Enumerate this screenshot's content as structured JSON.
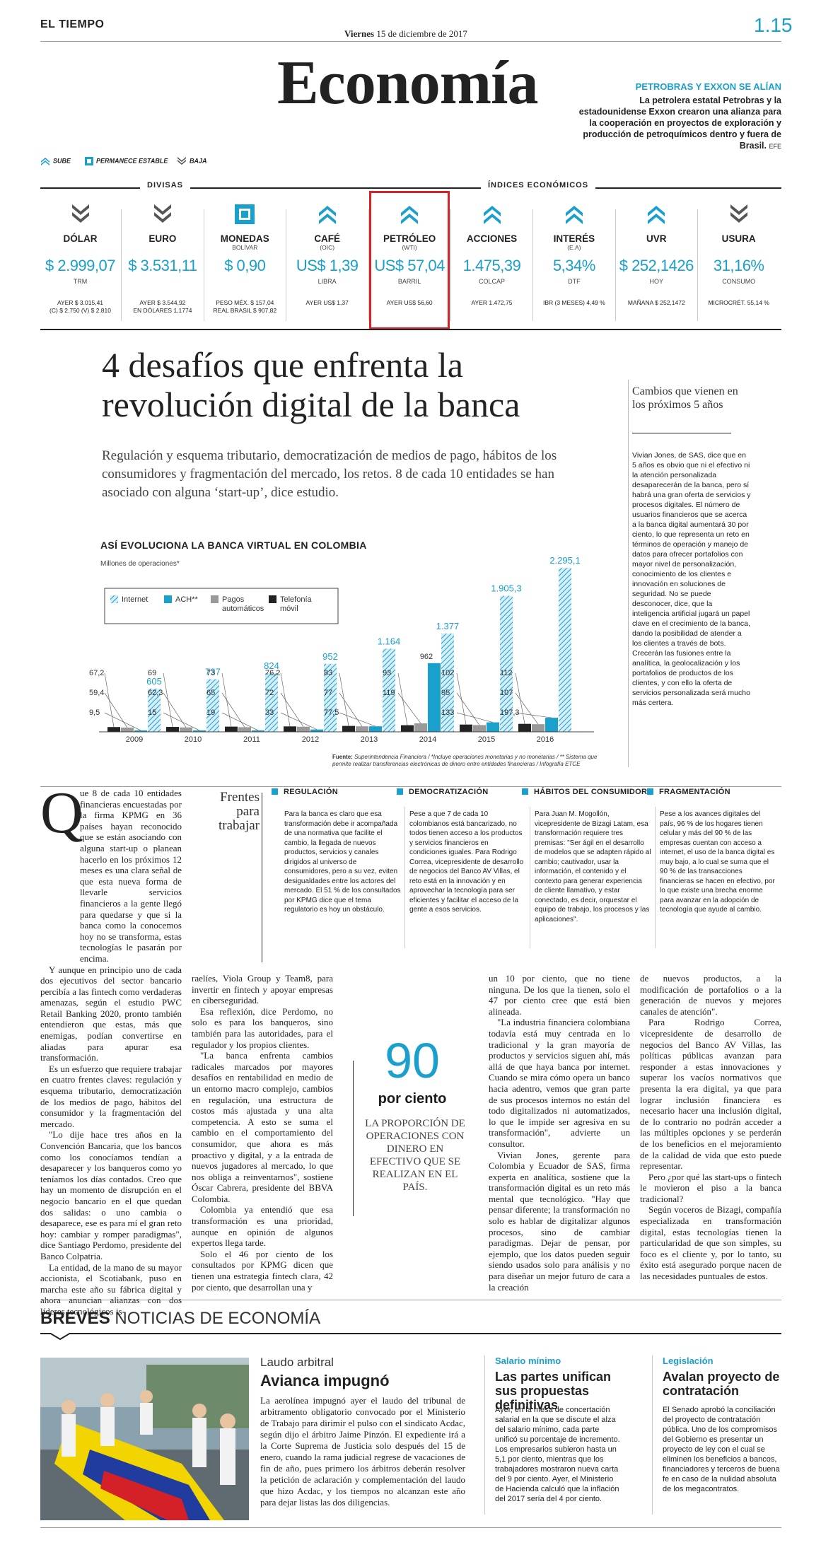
{
  "header": {
    "masthead": "EL TIEMPO",
    "date_day": "Viernes",
    "date_rest": "15 de diciembre de 2017",
    "page_number": "1.15",
    "section": "Economía",
    "promo_head": "PETROBRAS Y EXXON SE ALÍAN",
    "promo_text": "La petrolera estatal Petrobras y la estadounidense Exxon crearon una alianza para la cooperación en proyectos de exploración y producción de petroquímicos dentro y fuera de Brasil.",
    "promo_source": "EFE"
  },
  "legend": {
    "up": "SUBE",
    "stable": "PERMANECE ESTABLE",
    "down": "BAJA"
  },
  "groups": {
    "divisas": "DIVISAS",
    "indices": "ÍNDICES ECONÓMICOS"
  },
  "indicators": [
    {
      "name": "DÓLAR",
      "sub": "",
      "value": "$ 2.999,07",
      "unit": "TRM",
      "foot1": "AYER $ 3.015,41",
      "foot2": "(C) $ 2.750 (V) $ 2.810",
      "trend": "down"
    },
    {
      "name": "EURO",
      "sub": "",
      "value": "$ 3.531,11",
      "unit": "",
      "foot1": "AYER $ 3.544,92",
      "foot2": "EN DÓLARES 1,1774",
      "trend": "down"
    },
    {
      "name": "MONEDAS",
      "sub": "BOLÍVAR",
      "value": "$ 0,90",
      "unit": "",
      "foot1": "PESO MÉX. $ 157,04",
      "foot2": "REAL BRASIL $ 907,82",
      "trend": "stable"
    },
    {
      "name": "CAFÉ",
      "sub": "(OIC)",
      "value": "US$ 1,39",
      "unit": "LIBRA",
      "foot1": "AYER US$ 1,37",
      "foot2": "",
      "trend": "up"
    },
    {
      "name": "PETRÓLEO",
      "sub": "(WTI)",
      "value": "US$ 57,04",
      "unit": "BARRIL",
      "foot1": "AYER US$ 56,60",
      "foot2": "",
      "trend": "up"
    },
    {
      "name": "ACCIONES",
      "sub": "",
      "value": "1.475,39",
      "unit": "COLCAP",
      "foot1": "AYER 1.472,75",
      "foot2": "",
      "trend": "up"
    },
    {
      "name": "INTERÉS",
      "sub": "(E.A)",
      "value": "5,34%",
      "unit": "DTF",
      "foot1": "IBR (3 MESES) 4,49 %",
      "foot2": "",
      "trend": "up"
    },
    {
      "name": "UVR",
      "sub": "",
      "value": "$ 252,1426",
      "unit": "HOY",
      "foot1": "MAÑANA $ 252,1472",
      "foot2": "",
      "trend": "up"
    },
    {
      "name": "USURA",
      "sub": "",
      "value": "31,16%",
      "unit": "CONSUMO",
      "foot1": "MICROCRÉT. 55,14 %",
      "foot2": "",
      "trend": "down"
    }
  ],
  "article": {
    "headline": "4 desafíos que enfrenta la revolución digital de la banca",
    "deck": "Regulación y esquema tributario, democratización de medios de pago, hábitos de los consumidores y fragmentación del mercado, los retos. 8 de cada 10 entidades se han asociado con alguna ‘start-up’, dice estudio."
  },
  "chart_data": {
    "type": "bar",
    "title": "ASÍ EVOLUCIONA LA BANCA VIRTUAL EN COLOMBIA",
    "subtitle": "Millones de operaciones*",
    "categories": [
      "2009",
      "2010",
      "2011",
      "2012",
      "2013",
      "2014",
      "2015",
      "2016"
    ],
    "series": [
      {
        "name": "Internet",
        "color": "#1aa0cc",
        "pattern": "hatch",
        "values": [
          605,
          737,
          824,
          952,
          1164,
          1377,
          1905.3,
          2295.1
        ],
        "labels": [
          "605",
          "737",
          "824",
          "952",
          "1.164",
          "1.377",
          "1.905,3",
          "2.295,1"
        ]
      },
      {
        "name": "ACH**",
        "color": "#1aa0cc",
        "pattern": "solid",
        "values": [
          9.5,
          15,
          19,
          33,
          77.5,
          962,
          133,
          197.3
        ],
        "labels": [
          "9,5",
          "15",
          "19",
          "33",
          "77,5",
          "962",
          "133",
          "197,3"
        ]
      },
      {
        "name": "Pagos automáticos",
        "color": "#999999",
        "pattern": "solid",
        "values": [
          59.4,
          62.3,
          65,
          72,
          77,
          119,
          95,
          107
        ],
        "labels": [
          "59,4",
          "62,3",
          "65",
          "72",
          "77",
          "119",
          "95",
          "107"
        ]
      },
      {
        "name": "Telefonía móvil",
        "color": "#222222",
        "pattern": "solid",
        "values": [
          67.2,
          69,
          73,
          76.2,
          83,
          93,
          102,
          112
        ],
        "labels": [
          "67,2",
          "69",
          "73",
          "76,2",
          "83",
          "93",
          "102",
          "112"
        ]
      }
    ],
    "note_label": "Fuente:",
    "note": "Superintendencia Financiera / *Incluye operaciones monetarias y no monetarias / ** Sistema que permite realizar transferencias electrónicas de dinero entre entidades financieras / Infografía ETCE"
  },
  "sidebar": {
    "title": "Cambios que vienen en los próximos 5 años",
    "text": "Vivian Jones, de SAS, dice que en 5 años es obvio que ni el efectivo ni la atención personalizada desaparecerán de la banca, pero sí habrá una gran oferta de servicios y procesos digitales. El número de usuarios financieros que se acerca a la banca digital aumentará 30 por ciento, lo que representa un reto en términos de operación y manejo de datos para ofrecer portafolios con mayor nivel de personalización, conocimiento de los clientes e innovación en soluciones de seguridad. No se puede desconocer, dice, que la inteligencia artificial jugará un papel clave en el crecimiento de la banca, dando la posibilidad de atender a los clientes a través de bots. Crecerán las fusiones entre la analítica, la geolocalización y los portafolios de productos de los clientes, y con ello la oferta de servicios personalizada será mucho más certera."
  },
  "fronts": {
    "title": "Frentes para trabajar",
    "items": [
      {
        "head": "REGULACIÓN",
        "text": "Para la banca es claro que esa transformación debe ir acompañada de una normativa que facilite el cambio, la llegada de nuevos productos, servicios y canales dirigidos al universo de consumidores, pero a su vez, eviten desigualdades entre los actores del mercado. El 51 % de los consultados por KPMG dice que el tema regulatorio es hoy un obstáculo."
      },
      {
        "head": "DEMOCRATIZACIÓN",
        "text": "Pese a que 7 de cada 10 colombianos está bancarizado, no todos tienen acceso a los productos y servicios financieros en condiciones iguales. Para Rodrigo Correa, vicepresidente de desarrollo de negocios del Banco AV Villas, el reto está en la innovación y en aprovechar la tecnología para ser eficientes y facilitar el acceso de la gente a esos servicios."
      },
      {
        "head": "HÁBITOS DEL CONSUMIDOR",
        "text": "Para Juan M. Mogollón, vicepresidente de Bizagi Latam, esa transformación requiere tres premisas: \"Ser ágil en el desarrollo de modelos que se adapten rápido al cambio; cautivador, usar la información, el contenido y el contexto para generar experiencia de cliente llamativo, y estar conectado, es decir, orquestar el equipo de trabajo, los procesos y las aplicaciones\"."
      },
      {
        "head": "FRAGMENTACIÓN",
        "text": "Pese a los avances digitales del país, 96 % de los hogares tienen celular y más del 90 % de las empresas cuentan con acceso a internet, el uso de la banca digital es muy bajo, a lo cual se suma que el 90 % de las transacciones financieras se hacen en efectivo, por lo que existe una brecha enorme para avanzar en la adopción de tecnología que ayude al cambio."
      }
    ]
  },
  "body": {
    "dropcap": "Q",
    "col1_first": "ue 8 de cada 10 entidades financieras encuestadas por la firma KPMG en 36 países hayan reconocido que se están asociando con alguna start-up o planean hacerlo en los próximos 12 meses es una clara señal de que esta nueva forma de llevarle servicios financieros a la gente llegó para quedarse y que si la banca como la conocemos hoy no se transforma, estas tecnologías le pasarán por encima.",
    "col1_p2": "Y aunque en principio uno de cada dos ejecutivos del sector bancario percibía a las fintech como verdaderas amenazas, según el estudio PWC Retail Banking 2020, pronto también entendieron que estas, más que enemigas, podían convertirse en aliadas para apurar esa transformación.",
    "col1_p3": "Es un esfuerzo que requiere trabajar en cuatro frentes claves: regulación y esquema tributario, democratización de los medios de pago, hábitos del consumidor y la fragmentación del mercado.",
    "col1_p4": "\"Lo dije hace tres años en la Convención Bancaria, que los bancos como los conocíamos tendían a desaparecer y los banqueros como yo teníamos los días contados. Creo que hay un momento de disrupción en el negocio bancario en el que quedan dos salidas: o uno cambia o desaparece, ese es para mí el gran reto hoy: cambiar y romper paradigmas\", dice Santiago Perdomo, presidente del Banco Colpatria.",
    "col1_p5": "La entidad, de la mano de su mayor accionista, el Scotiabank, puso en marcha este año su fábrica digital y ahora anuncian alianzas con dos líderes tecnológicos is-",
    "col2_p1": "raelíes, Viola Group y Team8, para invertir en fintech y apoyar empresas en ciberseguridad.",
    "col2_p2": "Esa reflexión, dice Perdomo, no solo es para los banqueros, sino también para las autoridades, para el regulador y los propios clientes.",
    "col2_p3": "\"La banca enfrenta cambios radicales marcados por mayores desafíos en rentabilidad en medio de un entorno macro complejo, cambios en regulación, una estructura de costos más ajustada y una alta competencia. A esto se suma el cambio en el comportamiento del consumidor, que ahora es más proactivo y digital, y a la entrada de nuevos jugadores al mercado, lo que nos obliga a reinventarnos\", sostiene Óscar Cabrera, presidente del BBVA Colombia.",
    "col2_p4": "Colombia ya entendió que esa transformación es una prioridad, aunque en opinión de algunos expertos llega tarde.",
    "col2_p5": "Solo el 46 por ciento de los consultados por KPMG dicen que tienen una estrategia fintech clara, 42 por ciento, que desarrollan una y",
    "quote_num": "90",
    "quote_label": "por ciento",
    "quote_text": "LA PROPORCIÓN DE OPERACIONES CON DINERO EN EFECTIVO QUE SE REALIZAN EN EL PAÍS.",
    "col3_p1": "un 10 por ciento, que no tiene ninguna. De los que la tienen, solo el 47 por ciento cree que está bien alineada.",
    "col3_p2": "\"La industria financiera colombiana todavía está muy centrada en lo tradicional y la gran mayoría de productos y servicios siguen ahí, más allá de que haya banca por internet. Cuando se mira cómo opera un banco hacia adentro, vemos que gran parte de sus procesos internos no están del todo digitalizados ni automatizados, lo que le impide ser agresiva en su transformación\", advierte un consultor.",
    "col3_p3": "Vivian Jones, gerente para Colombia y Ecuador de SAS, firma experta en analítica, sostiene que la transformación digital es un reto más mental que tecnológico. \"Hay que pensar diferente; la transformación no solo es hablar de digitalizar algunos procesos, sino de cambiar paradigmas. Dejar de pensar, por ejemplo, que los datos pueden seguir siendo usados solo para análisis y no para diseñar un mejor futuro de cara a la creación",
    "col4_p1": "de nuevos productos, a la modificación de portafolios o a la generación de nuevos y mejores canales de atención\".",
    "col4_p2": "Para Rodrigo Correa, vicepresidente de desarrollo de negocios del Banco AV Villas, las políticas públicas avanzan para responder a estas innovaciones y superar los vacíos normativos que presenta la era digital, ya que para lograr inclusión financiera es necesario hacer una inclusión digital, de lo contrario no podrán acceder a las múltiples opciones y se perderán de los beneficios en el mejoramiento de la calidad de vida que esto puede representar.",
    "col4_p3": "Pero ¿por qué las start-ups o fintech le movieron el piso a la banca tradicional?",
    "col4_p4": "Según voceros de Bizagi, compañía especializada en transformación digital, estas tecnologías tienen la particularidad de que son simples, su foco es el cliente y, por lo tanto, su éxito está asegurado porque nacen de las necesidades puntuales de estos."
  },
  "breves": {
    "label_bold": "BREVES",
    "label_rest": "NOTICIAS DE ECONOMÍA",
    "news1_kicker": "Laudo arbitral",
    "news1_head": "Avianca impugnó",
    "news1_text": "La aerolínea impugnó ayer el laudo del tribunal de arbitramento obligatorio convocado por el Ministerio de Trabajo para dirimir el pulso con el sindicato Acdac, según dijo el árbitro Jaime Pinzón. El expediente irá a la Corte Suprema de Justicia solo después del 15 de enero, cuando la rama judicial regrese de vacaciones de fin de año, pues primero los árbitros deberán resolver la petición de aclaración y complementación del laudo que hizo Acdac, y los tiempos no alcanzan este año para dejar listas las dos diligencias.",
    "news2_kicker": "Salario mínimo",
    "news2_head": "Las partes unifican sus propuestas definitivas",
    "news2_text": "Ayer, en la mesa de concertación salarial en la que se discute el alza del salario mínimo, cada parte unificó su porcentaje de incremento. Los empresarios subieron hasta un 5,1 por ciento, mientras que los trabajadores mostraron nueva carta del 9 por ciento. Ayer, el Ministerio de Hacienda calculó que la inflación del 2017 sería del 4 por ciento.",
    "news3_kicker": "Legislación",
    "news3_head": "Avalan proyecto de contratación",
    "news3_text": "El Senado aprobó la conciliación del proyecto de contratación pública. Uno de los compromisos del Gobierno es presentar un proyecto de ley con el cual se eliminen los beneficios a bancos, financiadores y terceros de buena fe en caso de la nulidad absoluta de los megacontratos."
  }
}
